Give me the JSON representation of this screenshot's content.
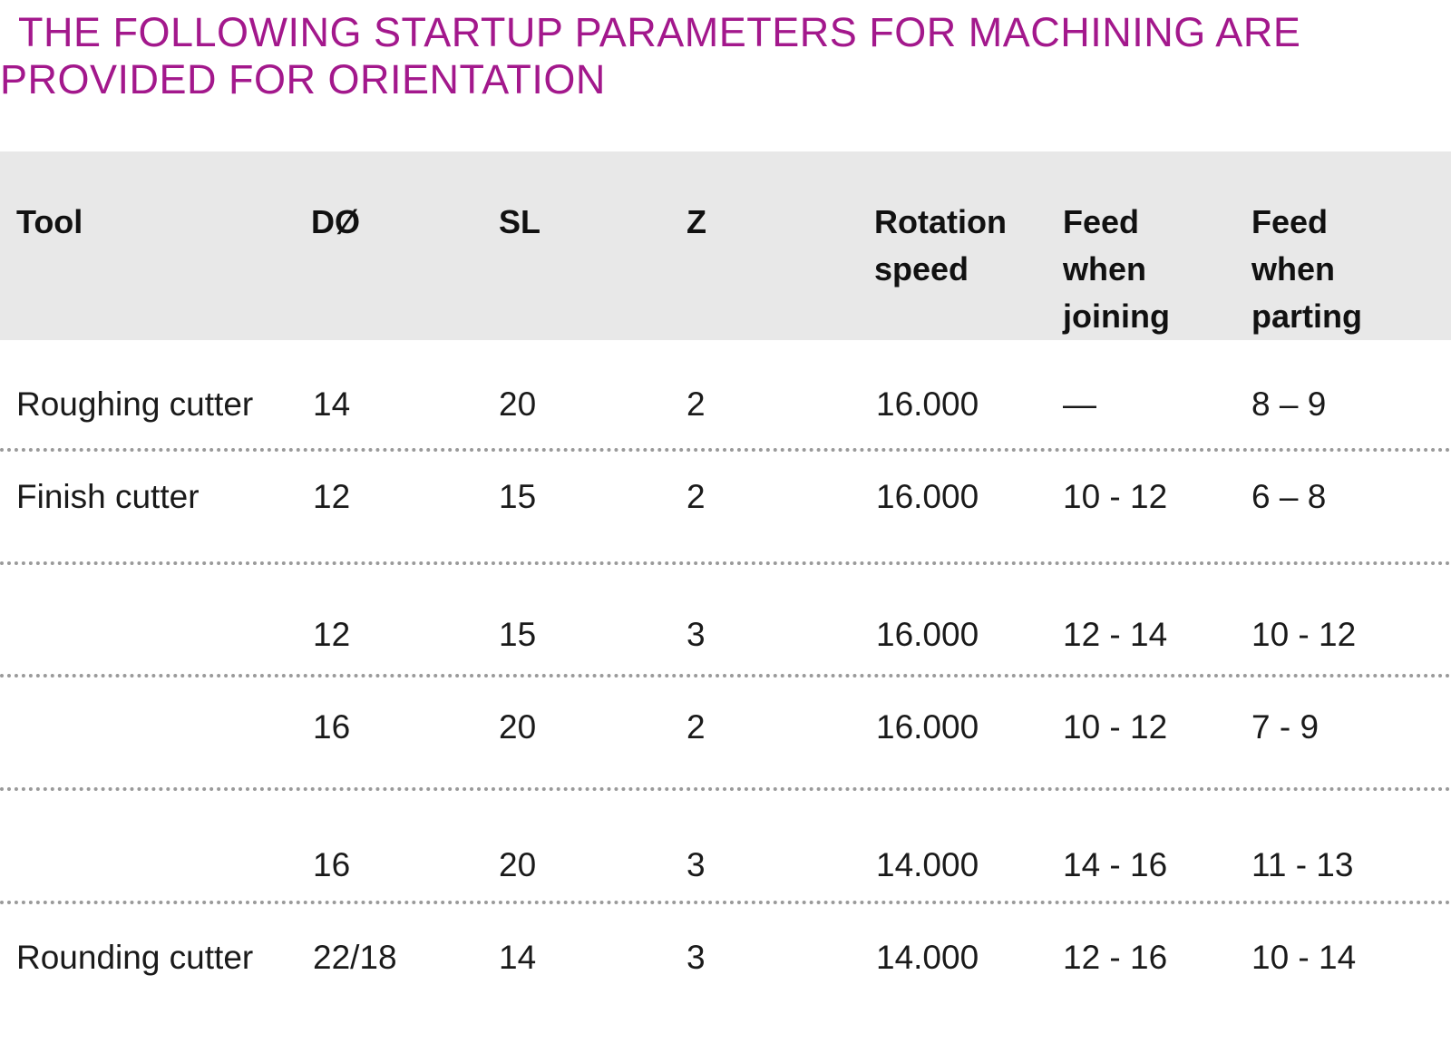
{
  "title": {
    "line1": "THE FOLLOWING STARTUP PARAMETERS FOR MACHINING ARE",
    "line2": "PROVIDED FOR ORIENTATION"
  },
  "table": {
    "headers": [
      [
        "Tool"
      ],
      [
        "DØ"
      ],
      [
        "SL"
      ],
      [
        "Z"
      ],
      [
        "Rotation",
        "speed"
      ],
      [
        "Feed",
        "when",
        "joining"
      ],
      [
        "Feed",
        "when",
        "parting"
      ]
    ],
    "rows": [
      [
        "Roughing cutter",
        "14",
        "20",
        "2",
        "16.000",
        "—",
        "8 – 9"
      ],
      [
        "Finish cutter",
        "12",
        "15",
        "2",
        "16.000",
        "10 - 12",
        "6 – 8"
      ],
      [
        "",
        "12",
        "15",
        "3",
        "16.000",
        "12 - 14",
        "10 - 12"
      ],
      [
        "",
        "16",
        "20",
        "2",
        "16.000",
        "10 - 12",
        "7 - 9"
      ],
      [
        "",
        "16",
        "20",
        "3",
        "14.000",
        "14 - 16",
        "11 - 13"
      ],
      [
        "Rounding cutter",
        "22/18",
        "14",
        "3",
        "14.000",
        "12 - 16",
        "10 - 14"
      ]
    ]
  }
}
